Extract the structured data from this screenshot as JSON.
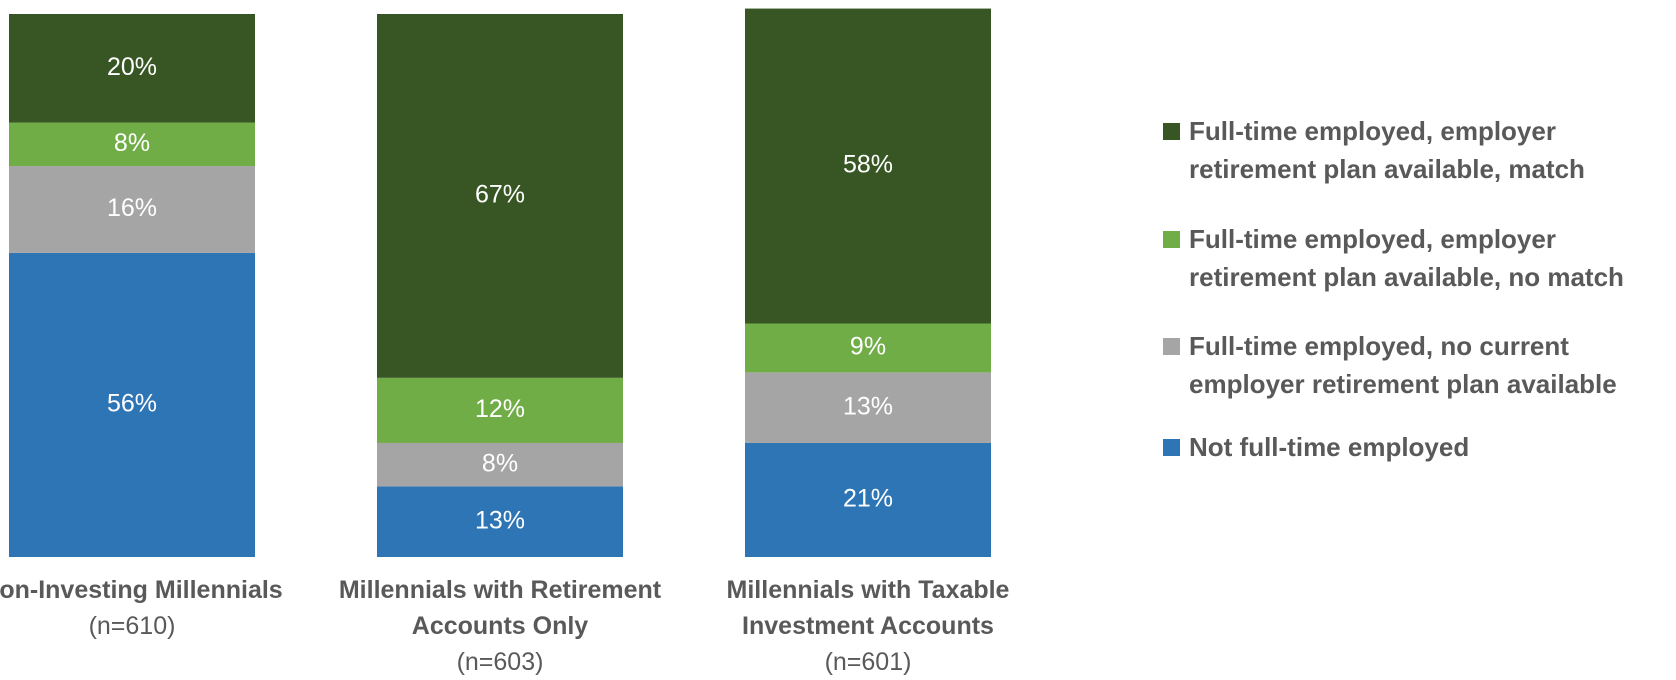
{
  "chart_data": {
    "type": "stacked_bar",
    "categories": [
      "Non-Investing Millennials",
      "Millennials with Retirement Accounts Only",
      "Millennials with Taxable Investment Accounts"
    ],
    "category_notes": [
      "(n=610)",
      "(n=603)",
      "(n=601)"
    ],
    "ylim": [
      0,
      100
    ],
    "legend": "right",
    "series": [
      {
        "name": "Full-time employed, employer retirement plan available, match",
        "color": "#375623",
        "values": [
          20,
          67,
          58
        ],
        "value_labels": [
          "20%",
          "67%",
          "58%"
        ]
      },
      {
        "name": "Full-time employed, employer retirement plan available, no match",
        "color": "#70ad47",
        "values": [
          8,
          12,
          9
        ],
        "value_labels": [
          "8%",
          "12%",
          "9%"
        ]
      },
      {
        "name": "Full-time employed, no current employer retirement plan available",
        "color": "#a5a5a5",
        "values": [
          16,
          8,
          13
        ],
        "value_labels": [
          "16%",
          "8%",
          "13%"
        ]
      },
      {
        "name": "Not full-time employed",
        "color": "#2e75b6",
        "values": [
          56,
          13,
          21
        ],
        "value_labels": [
          "56%",
          "13%",
          "21%"
        ]
      }
    ]
  }
}
